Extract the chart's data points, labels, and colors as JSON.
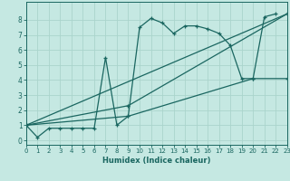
{
  "title": "",
  "xlabel": "Humidex (Indice chaleur)",
  "xlim": [
    0,
    23
  ],
  "ylim": [
    -0.3,
    9.2
  ],
  "xticks": [
    0,
    1,
    2,
    3,
    4,
    5,
    6,
    7,
    8,
    9,
    10,
    11,
    12,
    13,
    14,
    15,
    16,
    17,
    18,
    19,
    20,
    21,
    22,
    23
  ],
  "yticks": [
    0,
    1,
    2,
    3,
    4,
    5,
    6,
    7,
    8
  ],
  "background_color": "#c5e8e2",
  "grid_color": "#aad4cc",
  "line_color": "#1a6660",
  "series": [
    {
      "x": [
        0,
        1,
        2,
        3,
        4,
        5,
        6,
        7,
        8,
        9,
        10,
        11,
        12,
        13,
        14,
        15,
        16,
        17,
        18,
        19,
        20,
        21,
        22
      ],
      "y": [
        1,
        0.2,
        0.8,
        0.8,
        0.8,
        0.8,
        0.8,
        5.5,
        1.0,
        1.6,
        7.5,
        8.1,
        7.8,
        7.1,
        7.6,
        7.6,
        7.4,
        7.1,
        6.3,
        4.1,
        4.1,
        8.2,
        8.4
      ]
    },
    {
      "x": [
        0,
        23
      ],
      "y": [
        1,
        8.4
      ]
    },
    {
      "x": [
        0,
        9,
        23
      ],
      "y": [
        1,
        2.3,
        8.4
      ]
    },
    {
      "x": [
        0,
        9,
        20,
        23
      ],
      "y": [
        1,
        1.6,
        4.1,
        4.1
      ]
    }
  ]
}
